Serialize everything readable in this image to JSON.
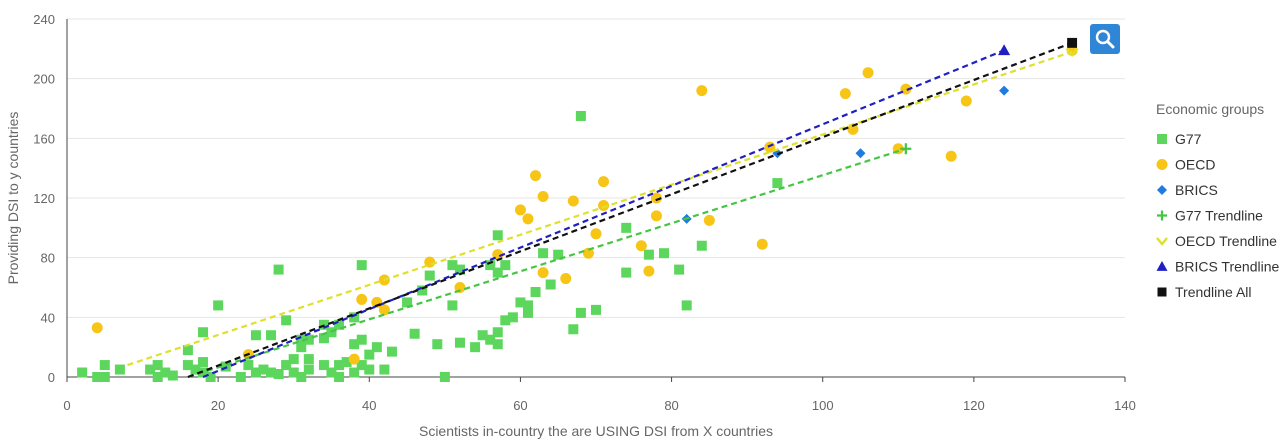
{
  "chart_data": {
    "type": "scatter",
    "title": "",
    "xlabel": "Scientists in-country the are USING DSI from X countries",
    "ylabel": "Providing DSI to y countries",
    "xlim": [
      0,
      140
    ],
    "ylim": [
      0,
      240
    ],
    "x_ticks": [
      "0",
      "20",
      "40",
      "60",
      "80",
      "100",
      "120",
      "140"
    ],
    "y_ticks": [
      "0",
      "40",
      "80",
      "120",
      "160",
      "200",
      "240"
    ],
    "grid": "horizontal",
    "legend_title": "Economic groups",
    "legend_position": "right",
    "series": [
      {
        "name": "G77",
        "marker": "square",
        "color": "#5cd65c",
        "kind": "scatter",
        "points": [
          [
            2,
            3
          ],
          [
            4,
            0
          ],
          [
            5,
            8
          ],
          [
            5,
            0
          ],
          [
            7,
            5
          ],
          [
            11,
            5
          ],
          [
            12,
            8
          ],
          [
            12,
            0
          ],
          [
            13,
            3
          ],
          [
            14,
            1
          ],
          [
            16,
            18
          ],
          [
            16,
            8
          ],
          [
            17,
            5
          ],
          [
            18,
            30
          ],
          [
            18,
            10
          ],
          [
            18,
            3
          ],
          [
            19,
            0
          ],
          [
            20,
            48
          ],
          [
            21,
            7
          ],
          [
            23,
            0
          ],
          [
            24,
            8
          ],
          [
            25,
            3
          ],
          [
            25,
            28
          ],
          [
            26,
            5
          ],
          [
            27,
            3
          ],
          [
            27,
            28
          ],
          [
            28,
            2
          ],
          [
            28,
            72
          ],
          [
            29,
            38
          ],
          [
            29,
            8
          ],
          [
            30,
            12
          ],
          [
            30,
            3
          ],
          [
            31,
            25
          ],
          [
            31,
            20
          ],
          [
            31,
            0
          ],
          [
            32,
            12
          ],
          [
            32,
            5
          ],
          [
            32,
            25
          ],
          [
            34,
            35
          ],
          [
            34,
            26
          ],
          [
            34,
            8
          ],
          [
            35,
            30
          ],
          [
            35,
            3
          ],
          [
            36,
            8
          ],
          [
            36,
            0
          ],
          [
            36,
            35
          ],
          [
            37,
            10
          ],
          [
            38,
            22
          ],
          [
            38,
            40
          ],
          [
            38,
            3
          ],
          [
            39,
            75
          ],
          [
            39,
            25
          ],
          [
            39,
            8
          ],
          [
            40,
            15
          ],
          [
            40,
            5
          ],
          [
            41,
            20
          ],
          [
            42,
            5
          ],
          [
            43,
            17
          ],
          [
            45,
            50
          ],
          [
            46,
            29
          ],
          [
            47,
            58
          ],
          [
            48,
            68
          ],
          [
            49,
            22
          ],
          [
            50,
            0
          ],
          [
            51,
            75
          ],
          [
            51,
            48
          ],
          [
            52,
            72
          ],
          [
            52,
            23
          ],
          [
            54,
            20
          ],
          [
            55,
            28
          ],
          [
            56,
            75
          ],
          [
            56,
            25
          ],
          [
            57,
            95
          ],
          [
            57,
            30
          ],
          [
            57,
            70
          ],
          [
            57,
            22
          ],
          [
            58,
            75
          ],
          [
            58,
            38
          ],
          [
            59,
            40
          ],
          [
            60,
            50
          ],
          [
            61,
            43
          ],
          [
            61,
            48
          ],
          [
            62,
            57
          ],
          [
            63,
            83
          ],
          [
            64,
            62
          ],
          [
            65,
            82
          ],
          [
            67,
            32
          ],
          [
            68,
            175
          ],
          [
            68,
            43
          ],
          [
            70,
            45
          ],
          [
            74,
            70
          ],
          [
            74,
            100
          ],
          [
            77,
            82
          ],
          [
            79,
            83
          ],
          [
            81,
            72
          ],
          [
            82,
            48
          ],
          [
            84,
            88
          ],
          [
            94,
            130
          ]
        ]
      },
      {
        "name": "OECD",
        "marker": "circle",
        "color": "#f7c515",
        "kind": "scatter",
        "points": [
          [
            4,
            33
          ],
          [
            24,
            15
          ],
          [
            38,
            12
          ],
          [
            39,
            52
          ],
          [
            41,
            50
          ],
          [
            42,
            65
          ],
          [
            42,
            45
          ],
          [
            48,
            77
          ],
          [
            52,
            60
          ],
          [
            57,
            82
          ],
          [
            60,
            112
          ],
          [
            61,
            106
          ],
          [
            62,
            135
          ],
          [
            63,
            121
          ],
          [
            63,
            70
          ],
          [
            66,
            66
          ],
          [
            67,
            118
          ],
          [
            69,
            83
          ],
          [
            70,
            96
          ],
          [
            71,
            131
          ],
          [
            71,
            115
          ],
          [
            76,
            88
          ],
          [
            77,
            71
          ],
          [
            78,
            120
          ],
          [
            78,
            108
          ],
          [
            84,
            192
          ],
          [
            85,
            105
          ],
          [
            92,
            89
          ],
          [
            93,
            154
          ],
          [
            103,
            190
          ],
          [
            104,
            166
          ],
          [
            106,
            204
          ],
          [
            110,
            153
          ],
          [
            111,
            193
          ],
          [
            117,
            148
          ],
          [
            119,
            185
          ],
          [
            133,
            219
          ]
        ]
      },
      {
        "name": "BRICS",
        "marker": "diamond",
        "color": "#1f7be0",
        "kind": "scatter",
        "points": [
          [
            82,
            106
          ],
          [
            94,
            150
          ],
          [
            105,
            150
          ],
          [
            124,
            192
          ]
        ]
      },
      {
        "name": "G77 Trendline",
        "marker": "plus",
        "color": "#44c644",
        "kind": "trend",
        "points": [
          [
            16,
            0
          ],
          [
            111,
            153
          ]
        ]
      },
      {
        "name": "OECD Trendline",
        "marker": "chevron",
        "color": "#dfe02a",
        "kind": "trend",
        "points": [
          [
            8,
            8
          ],
          [
            133,
            218
          ]
        ]
      },
      {
        "name": "BRICS Trendline",
        "marker": "triangle",
        "color": "#1f1fc2",
        "kind": "trend",
        "points": [
          [
            18,
            0
          ],
          [
            124,
            219
          ]
        ]
      },
      {
        "name": "Trendline All",
        "marker": "square-black",
        "color": "#111111",
        "kind": "trend",
        "points": [
          [
            16,
            0
          ],
          [
            133,
            224
          ]
        ]
      }
    ]
  },
  "zoom_icon": "search-icon"
}
